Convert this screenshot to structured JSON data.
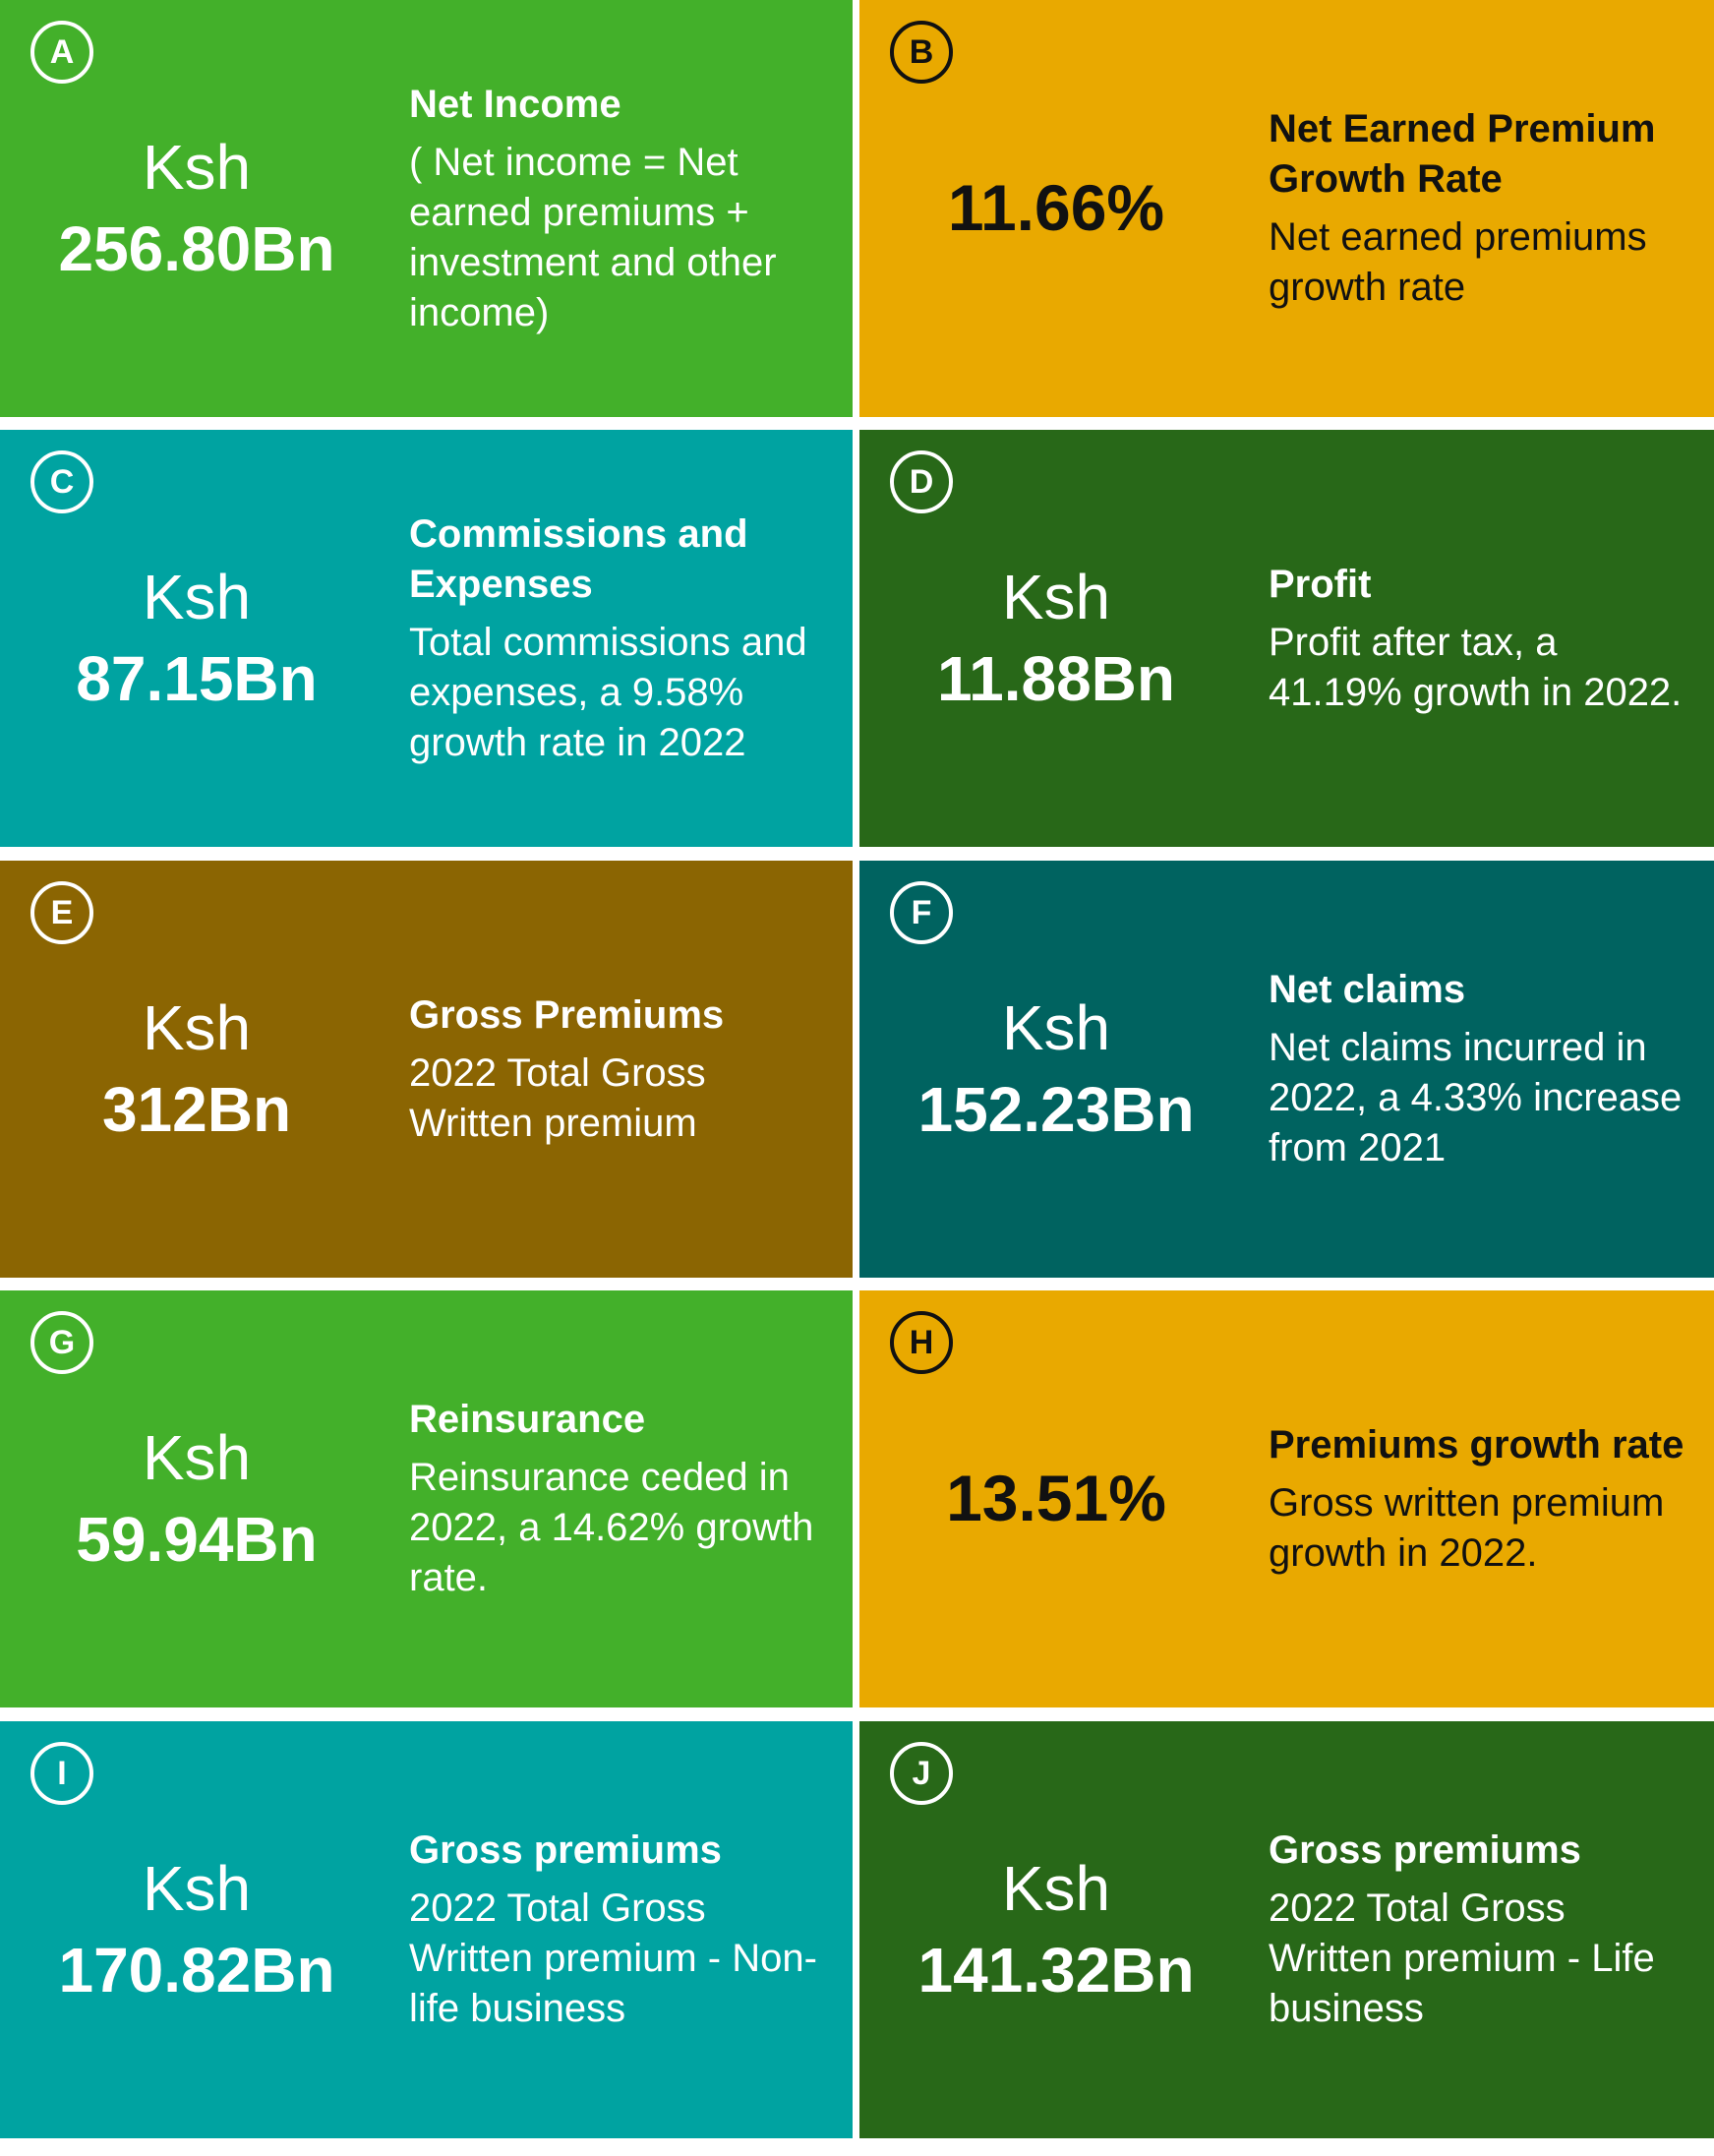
{
  "colors": {
    "bright_green": "#43b02a",
    "gold": "#e9a900",
    "teal": "#00a3a1",
    "dark_green": "#286818",
    "olive_brown": "#8b6502",
    "dark_teal": "#006360"
  },
  "cards": [
    {
      "letter": "A",
      "prefix": "Ksh",
      "value": "256.80Bn",
      "title": "Net Income",
      "description": "( Net income = Net earned premiums + investment and other income)"
    },
    {
      "letter": "B",
      "prefix": "",
      "value": "11.66%",
      "title": "Net Earned Premium Growth Rate",
      "description": "Net earned premiums growth rate"
    },
    {
      "letter": "C",
      "prefix": "Ksh",
      "value": "87.15Bn",
      "title": "Commissions and Expenses",
      "description": "Total commissions and expenses, a 9.58% growth rate in 2022"
    },
    {
      "letter": "D",
      "prefix": "Ksh",
      "value": "11.88Bn",
      "title": "Profit",
      "description": "Profit after tax, a 41.19% growth in 2022."
    },
    {
      "letter": "E",
      "prefix": "Ksh",
      "value": "312Bn",
      "title": "Gross Premiums",
      "description": "2022 Total Gross Written premium"
    },
    {
      "letter": "F",
      "prefix": "Ksh",
      "value": "152.23Bn",
      "title": "Net claims",
      "description": "Net claims incurred in 2022, a 4.33% increase from 2021"
    },
    {
      "letter": "G",
      "prefix": "Ksh",
      "value": "59.94Bn",
      "title": "Reinsurance",
      "description": "Reinsurance ceded in 2022, a 14.62% growth rate."
    },
    {
      "letter": "H",
      "prefix": "",
      "value": "13.51%",
      "title": "Premiums growth rate",
      "description": "Gross written premium growth in 2022."
    },
    {
      "letter": "I",
      "prefix": "Ksh",
      "value": "170.82Bn",
      "title": "Gross premiums",
      "description": "2022 Total Gross Written premium - Non-life business"
    },
    {
      "letter": "J",
      "prefix": "Ksh",
      "value": "141.32Bn",
      "title": "Gross premiums",
      "description": "2022 Total Gross Written premium - Life business"
    }
  ]
}
